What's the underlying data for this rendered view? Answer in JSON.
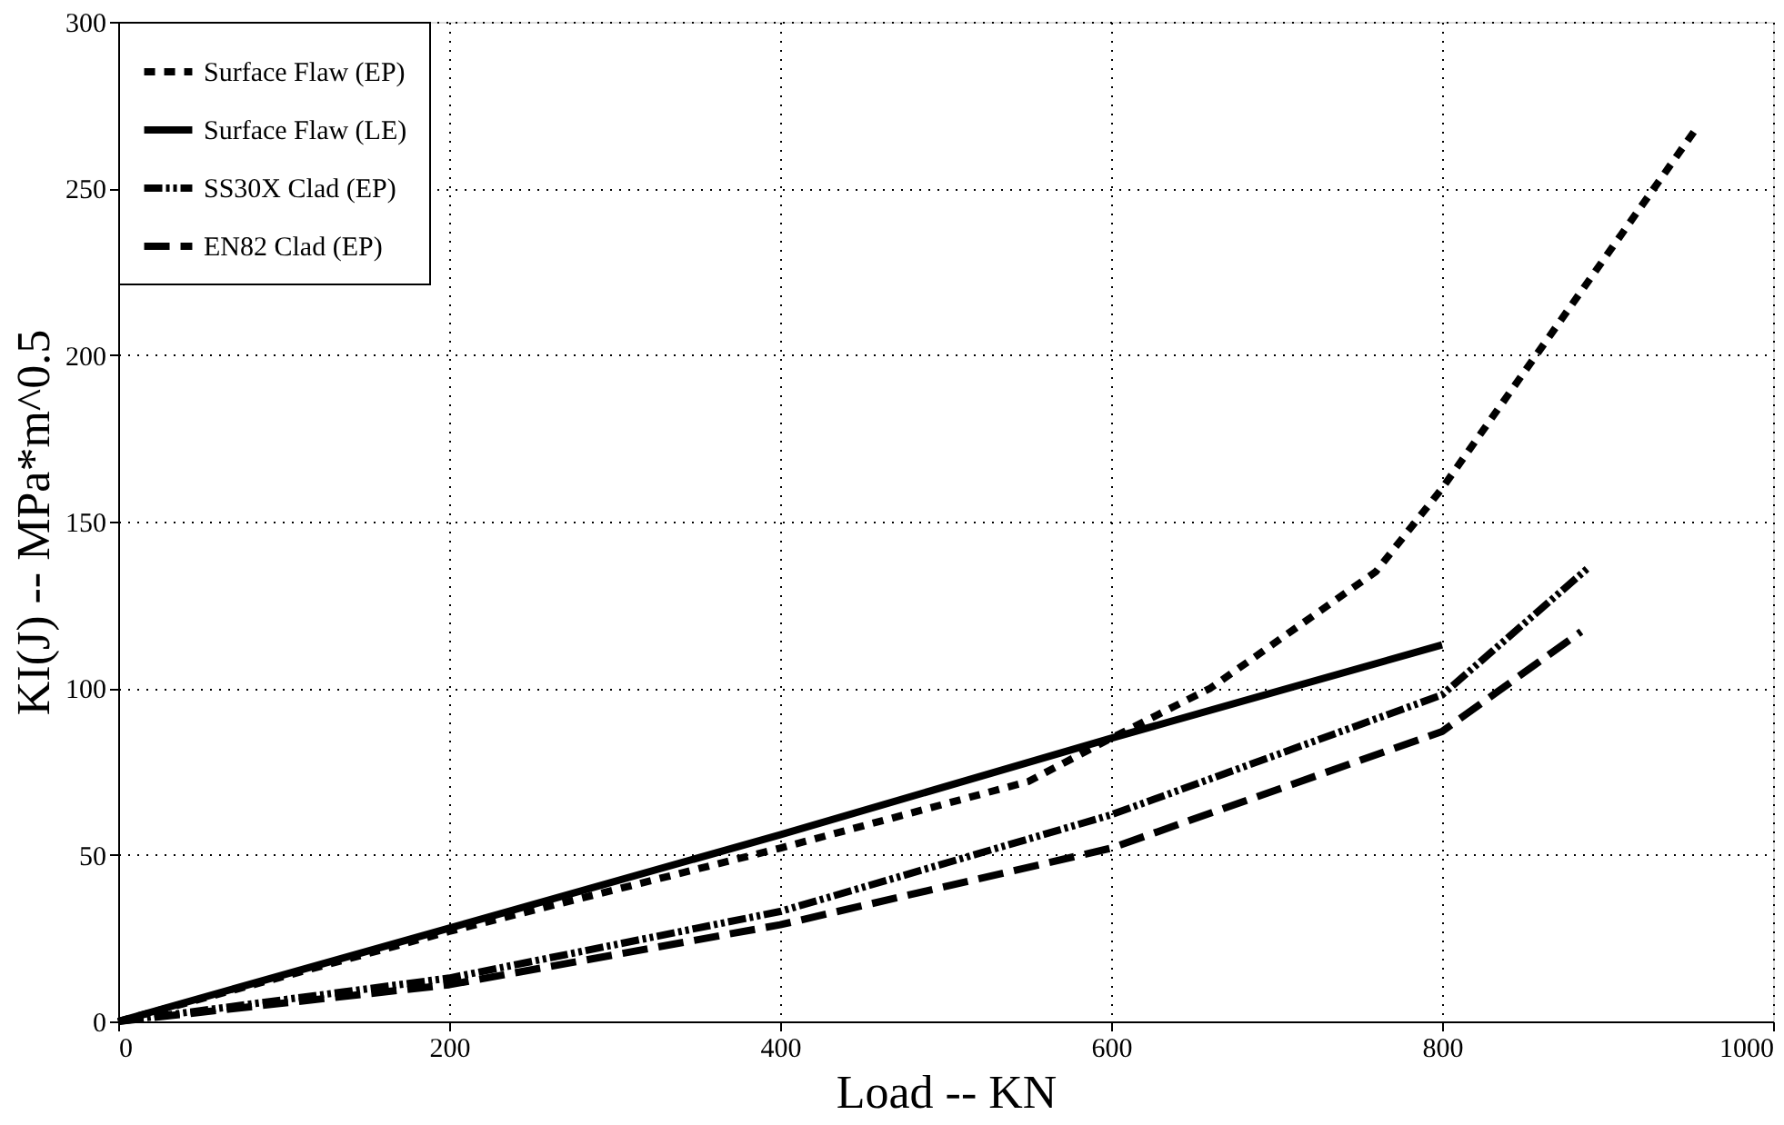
{
  "chart_data": {
    "type": "line",
    "xlabel": "Load -- KN",
    "ylabel": "KI(J) -- MPa*m^0.5",
    "xlim": [
      0,
      1000
    ],
    "xticks": [
      0,
      200,
      400,
      600,
      800,
      1000
    ],
    "ylim": [
      0,
      300
    ],
    "yticks": [
      0,
      50,
      100,
      150,
      200,
      250,
      300
    ],
    "grid": true,
    "legend": "top left",
    "marker": "none",
    "series": [
      {
        "name": "Surface Flaw (EP)",
        "color": "#000000",
        "line_style": "dotted",
        "x": [
          0,
          200,
          400,
          550,
          600,
          660,
          760,
          800,
          955
        ],
        "values": [
          0,
          27,
          52,
          72,
          85,
          100,
          135,
          160,
          269
        ]
      },
      {
        "name": "Surface Flaw (LE)",
        "color": "#000000",
        "line_style": "solid",
        "x": [
          0,
          200,
          400,
          600,
          800
        ],
        "values": [
          0,
          28,
          56,
          85,
          113
        ]
      },
      {
        "name": "SS30X Clad (EP)",
        "color": "#000000",
        "line_style": "dashdot",
        "x": [
          0,
          200,
          400,
          600,
          800,
          888
        ],
        "values": [
          0,
          13,
          33,
          62,
          98,
          136
        ]
      },
      {
        "name": "EN82 Clad (EP)",
        "color": "#000000",
        "line_style": "dashed",
        "x": [
          0,
          200,
          400,
          600,
          800,
          884
        ],
        "values": [
          0,
          11,
          29,
          52,
          87,
          117
        ]
      }
    ]
  }
}
